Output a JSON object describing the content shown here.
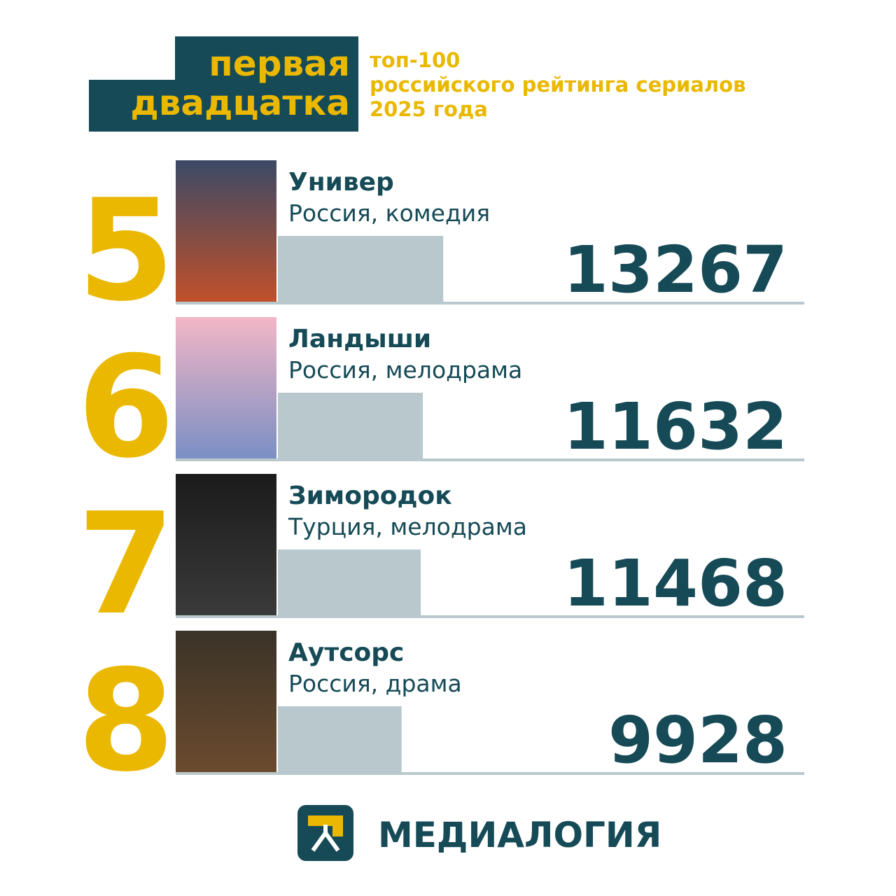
{
  "header": {
    "title_lines": [
      "первая",
      "двадцатка"
    ],
    "subtitle_lines": [
      "топ-100",
      "российского рейтинга сериалов",
      "2025 года"
    ]
  },
  "items": [
    {
      "rank": 5,
      "title": "Универ",
      "subtitle": "Россия, комедия",
      "value": 13267
    },
    {
      "rank": 6,
      "title": "Ландыши",
      "subtitle": "Россия, мелодрама",
      "value": 11632
    },
    {
      "rank": 7,
      "title": "Зимородок",
      "subtitle": "Турция, мелодрама",
      "value": 11468
    },
    {
      "rank": 8,
      "title": "Аутсорс",
      "subtitle": "Россия, драма",
      "value": 9928
    }
  ],
  "footer": {
    "logo": "МЕДИАЛОГИЯ"
  }
}
